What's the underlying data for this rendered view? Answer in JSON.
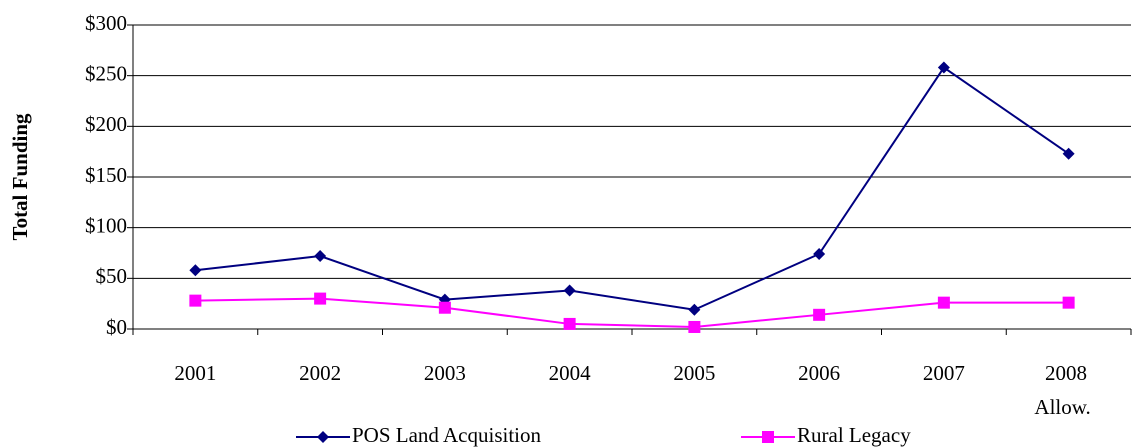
{
  "chart_data": {
    "type": "line",
    "y_label": "Total Funding",
    "categories": [
      "2001",
      "2002",
      "2003",
      "2004",
      "2005",
      "2006",
      "2007",
      "2008 Allow."
    ],
    "series": [
      {
        "name": "POS Land Acquisition",
        "color": "#000080",
        "marker": "diamond",
        "values": [
          58,
          72,
          29,
          38,
          19,
          74,
          258,
          173
        ]
      },
      {
        "name": "Rural Legacy",
        "color": "#ff00ff",
        "marker": "square",
        "values": [
          28,
          30,
          21,
          5,
          2,
          14,
          26,
          26
        ]
      }
    ],
    "ylim": [
      0,
      300
    ],
    "yticks": [
      {
        "value": 0,
        "label": "$0"
      },
      {
        "value": 50,
        "label": "$50"
      },
      {
        "value": 100,
        "label": "$100"
      },
      {
        "value": 150,
        "label": "$150"
      },
      {
        "value": 200,
        "label": "$200"
      },
      {
        "value": 250,
        "label": "$250"
      },
      {
        "value": 300,
        "label": "$300"
      }
    ],
    "grid": true,
    "legend": "bottom"
  }
}
